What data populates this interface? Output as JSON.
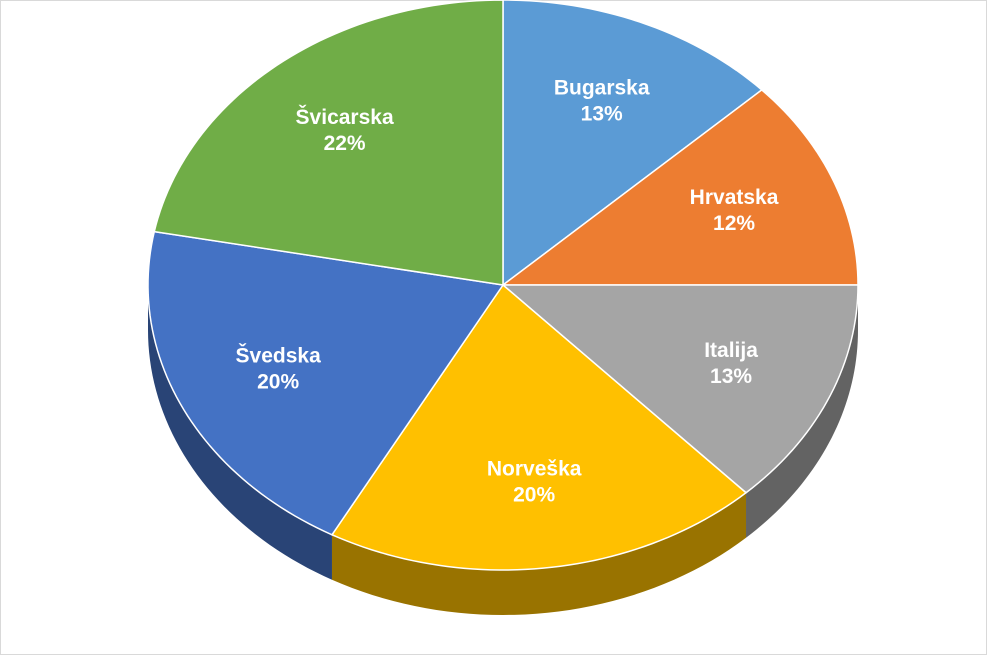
{
  "chart_data": {
    "type": "pie",
    "categories": [
      "Bugarska",
      "Hrvatska",
      "Italija",
      "Norveška",
      "Švedska",
      "Švicarska"
    ],
    "values": [
      13,
      12,
      13,
      20,
      20,
      22
    ],
    "value_labels": [
      "13%",
      "12%",
      "13%",
      "20%",
      "20%",
      "22%"
    ],
    "colors": [
      "#5b9bd5",
      "#ed7d31",
      "#a5a5a5",
      "#ffc000",
      "#4472c4",
      "#70ad47"
    ]
  }
}
